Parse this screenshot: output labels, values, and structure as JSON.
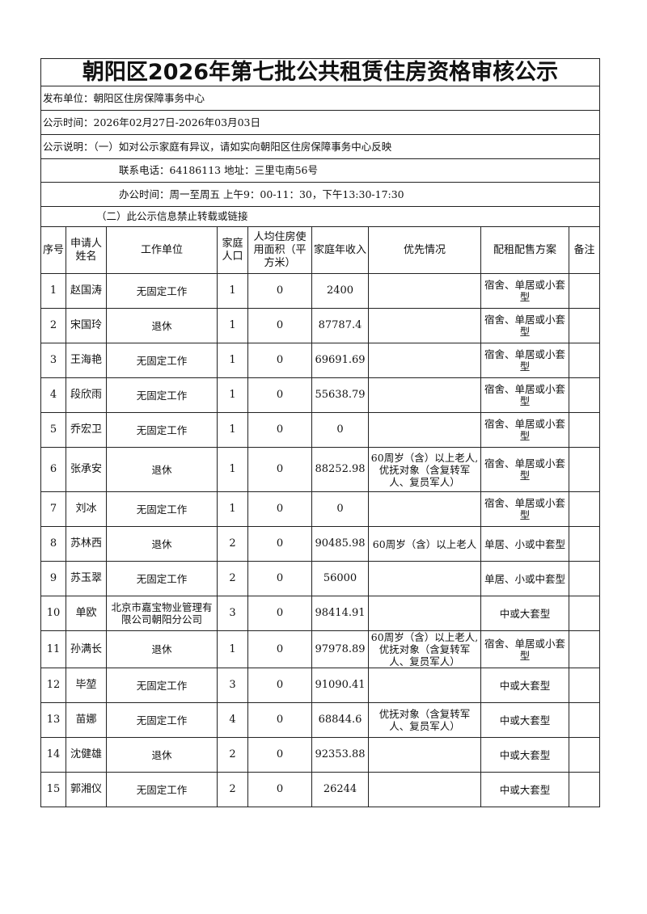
{
  "title": "朝阳区2026年第七批公共租赁住房资格审核公示",
  "publisher": "发布单位：朝阳区住房保障事务中心",
  "period": "公示时间：2026年02月27日-2026年03月03日",
  "note_1": "公示说明：（一）如对公示家庭有异议，请如实向朝阳区住房保障事务中心反映",
  "note_contact": "联系电话：64186113 地址：三里屯南56号",
  "note_hours": "办公时间：周一至周五 上午9：00-11：30，下午13:30-17:30",
  "note_2": "（二）此公示信息禁止转载或链接",
  "headers": [
    "序号",
    "申请人姓名",
    "工作单位",
    "家庭人口",
    "人均住房使用面积（平方米）",
    "家庭年收入",
    "优先情况",
    "配租配售方案",
    "备注"
  ],
  "rows": [
    {
      "no": "1",
      "name": "赵国涛",
      "work": "无固定工作",
      "pop": "1",
      "area": "0",
      "income": "2400",
      "priority": "",
      "plan": "宿舍、单居或小套型",
      "remark": ""
    },
    {
      "no": "2",
      "name": "宋国玲",
      "work": "退休",
      "pop": "1",
      "area": "0",
      "income": "87787.4",
      "priority": "",
      "plan": "宿舍、单居或小套型",
      "remark": ""
    },
    {
      "no": "3",
      "name": "王海艳",
      "work": "无固定工作",
      "pop": "1",
      "area": "0",
      "income": "69691.69",
      "priority": "",
      "plan": "宿舍、单居或小套型",
      "remark": ""
    },
    {
      "no": "4",
      "name": "段欣雨",
      "work": "无固定工作",
      "pop": "1",
      "area": "0",
      "income": "55638.79",
      "priority": "",
      "plan": "宿舍、单居或小套型",
      "remark": ""
    },
    {
      "no": "5",
      "name": "乔宏卫",
      "work": "无固定工作",
      "pop": "1",
      "area": "0",
      "income": "0",
      "priority": "",
      "plan": "宿舍、单居或小套型",
      "remark": ""
    },
    {
      "no": "6",
      "name": "张承安",
      "work": "退休",
      "pop": "1",
      "area": "0",
      "income": "88252.98",
      "priority": "60周岁（含）以上老人,优抚对象（含复转军人、复员军人）",
      "plan": "宿舍、单居或小套型",
      "remark": ""
    },
    {
      "no": "7",
      "name": "刘冰",
      "work": "无固定工作",
      "pop": "1",
      "area": "0",
      "income": "0",
      "priority": "",
      "plan": "宿舍、单居或小套型",
      "remark": ""
    },
    {
      "no": "8",
      "name": "苏林西",
      "work": "退休",
      "pop": "2",
      "area": "0",
      "income": "90485.98",
      "priority": "60周岁（含）以上老人",
      "plan": "单居、小或中套型",
      "remark": ""
    },
    {
      "no": "9",
      "name": "苏玉翠",
      "work": "无固定工作",
      "pop": "2",
      "area": "0",
      "income": "56000",
      "priority": "",
      "plan": "单居、小或中套型",
      "remark": ""
    },
    {
      "no": "10",
      "name": "单欧",
      "work": "北京市嘉宝物业管理有限公司朝阳分公司",
      "pop": "3",
      "area": "0",
      "income": "98414.91",
      "priority": "",
      "plan": "中或大套型",
      "remark": ""
    },
    {
      "no": "11",
      "name": "孙满长",
      "work": "退休",
      "pop": "1",
      "area": "0",
      "income": "97978.89",
      "priority": "60周岁（含）以上老人,优抚对象（含复转军人、复员军人）",
      "plan": "宿舍、单居或小套型",
      "remark": ""
    },
    {
      "no": "12",
      "name": "毕堃",
      "work": "无固定工作",
      "pop": "3",
      "area": "0",
      "income": "91090.41",
      "priority": "",
      "plan": "中或大套型",
      "remark": ""
    },
    {
      "no": "13",
      "name": "苗娜",
      "work": "无固定工作",
      "pop": "4",
      "area": "0",
      "income": "68844.6",
      "priority": "优抚对象（含复转军人、复员军人）",
      "plan": "中或大套型",
      "remark": ""
    },
    {
      "no": "14",
      "name": "沈健雄",
      "work": "退休",
      "pop": "2",
      "area": "0",
      "income": "92353.88",
      "priority": "",
      "plan": "中或大套型",
      "remark": ""
    },
    {
      "no": "15",
      "name": "郭湘仪",
      "work": "无固定工作",
      "pop": "2",
      "area": "0",
      "income": "26244",
      "priority": "",
      "plan": "中或大套型",
      "remark": ""
    }
  ]
}
